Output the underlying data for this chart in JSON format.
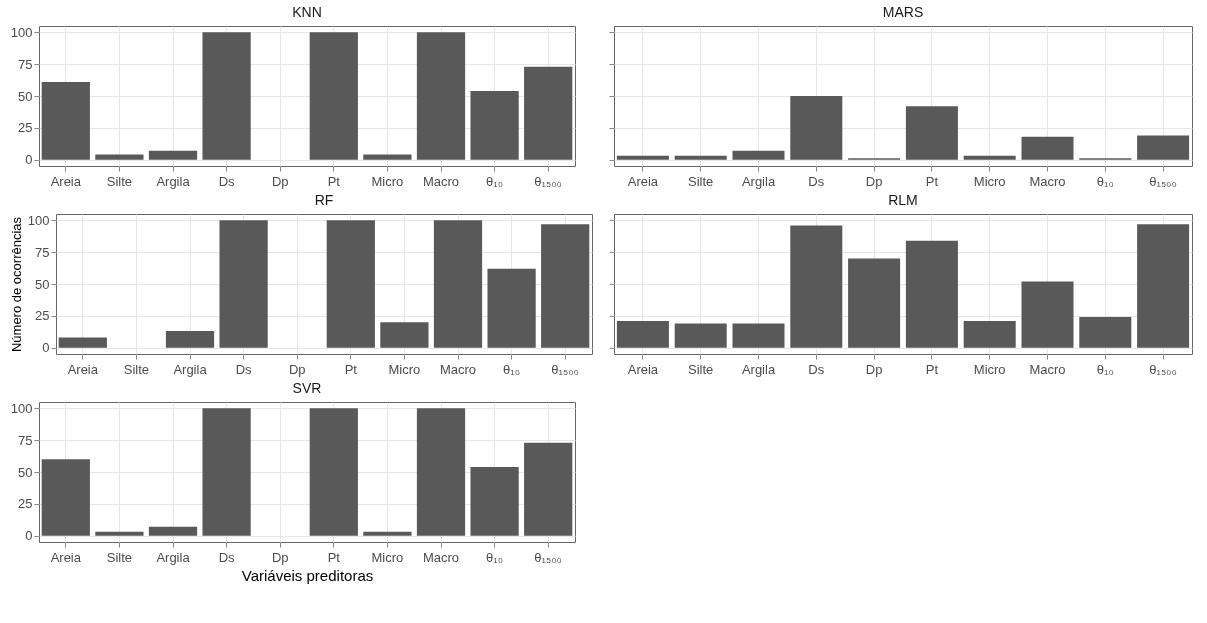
{
  "chart_data": [
    {
      "type": "bar",
      "title": "KNN",
      "categories": [
        "Areia",
        "Silte",
        "Argila",
        "Ds",
        "Dp",
        "Pt",
        "Micro",
        "Macro",
        "θ₁₀",
        "θ₁₅₀₀"
      ],
      "values": [
        61,
        4,
        7,
        100,
        0,
        100,
        4,
        100,
        54,
        73
      ],
      "color": "#595959",
      "ylim": [
        -5,
        105
      ],
      "yticks": [
        0,
        25,
        50,
        75,
        100
      ],
      "grid": true
    },
    {
      "type": "bar",
      "title": "MARS",
      "categories": [
        "Areia",
        "Silte",
        "Argila",
        "Ds",
        "Dp",
        "Pt",
        "Micro",
        "Macro",
        "θ₁₀",
        "θ₁₅₀₀"
      ],
      "values": [
        3,
        3,
        7,
        50,
        1,
        42,
        3,
        18,
        1,
        19
      ],
      "color": "#595959",
      "ylim": [
        -5,
        105
      ],
      "yticks": [
        0,
        25,
        50,
        75,
        100
      ],
      "grid": true,
      "tick_labels": "x"
    },
    {
      "type": "bar",
      "title": "RF",
      "ylabel": "Número de ocorrências",
      "categories": [
        "Areia",
        "Silte",
        "Argila",
        "Ds",
        "Dp",
        "Pt",
        "Micro",
        "Macro",
        "θ₁₀",
        "θ₁₅₀₀"
      ],
      "values": [
        8,
        0,
        13,
        100,
        0,
        100,
        20,
        100,
        62,
        97
      ],
      "color": "#595959",
      "ylim": [
        -5,
        105
      ],
      "yticks": [
        0,
        25,
        50,
        75,
        100
      ],
      "grid": true
    },
    {
      "type": "bar",
      "title": "RLM",
      "categories": [
        "Areia",
        "Silte",
        "Argila",
        "Ds",
        "Dp",
        "Pt",
        "Micro",
        "Macro",
        "θ₁₀",
        "θ₁₅₀₀"
      ],
      "values": [
        21,
        19,
        19,
        96,
        70,
        84,
        21,
        52,
        24,
        97
      ],
      "color": "#595959",
      "ylim": [
        -5,
        105
      ],
      "yticks": [
        0,
        25,
        50,
        75,
        100
      ],
      "grid": true,
      "tick_labels": "x"
    },
    {
      "type": "bar",
      "title": "SVR",
      "xlabel": "Variáveis preditoras",
      "categories": [
        "Areia",
        "Silte",
        "Argila",
        "Ds",
        "Dp",
        "Pt",
        "Micro",
        "Macro",
        "θ₁₀",
        "θ₁₅₀₀"
      ],
      "values": [
        60,
        3,
        7,
        100,
        0,
        100,
        3,
        100,
        54,
        73
      ],
      "color": "#595959",
      "ylim": [
        -5,
        105
      ],
      "yticks": [
        0,
        25,
        50,
        75,
        100
      ],
      "grid": true
    }
  ]
}
